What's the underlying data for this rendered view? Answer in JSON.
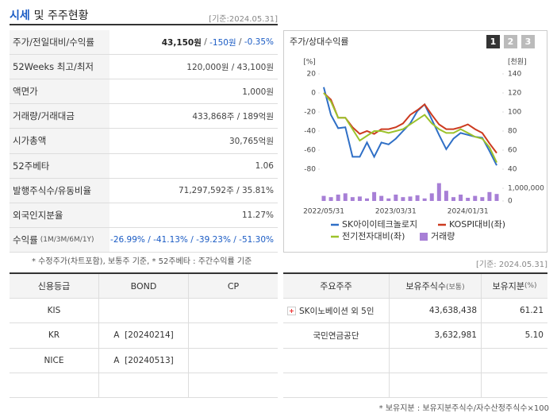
{
  "header": {
    "title": "시세",
    "title_rest": "및 주주현황",
    "date": "[기준:2024.05.31]"
  },
  "quote_table": {
    "rows": [
      {
        "label": "주가/전일대비/수익률",
        "value": [
          "43,150원",
          " / ",
          "-150원",
          " / ",
          "-0.35%"
        ],
        "colors": [
          "#222222",
          "#555555",
          "#1a5bc4",
          "#555555",
          "#1a5bc4"
        ]
      },
      {
        "label": "52Weeks 최고/최저",
        "value": [
          "120,000원 / 43,100원"
        ]
      },
      {
        "label": "액면가",
        "value": [
          "1,000원"
        ]
      },
      {
        "label": "거래량/거래대금",
        "value": [
          "433,868주 / 189억원"
        ]
      },
      {
        "label": "시가총액",
        "value": [
          "30,765억원"
        ]
      },
      {
        "label": "52주베타",
        "value": [
          "1.06"
        ]
      },
      {
        "label": "발행주식수/유동비율",
        "value": [
          "71,297,592주 / 35.81%"
        ]
      },
      {
        "label": "외국인지분율",
        "value": [
          "11.27%"
        ]
      },
      {
        "label": "수익률",
        "label_note": "(1M/3M/6M/1Y)",
        "value": [
          "-26.99% / -41.13% / -39.23% / -51.30%"
        ],
        "colors": [
          "#1a5bc4"
        ]
      }
    ],
    "note": "* 수정주가(차트포함), 보통주 기준, * 52주베타 : 주간수익률 기준"
  },
  "chart_data": {
    "type": "line",
    "title": "주가/상대수익률",
    "buttons": [
      "1",
      "2",
      "3"
    ],
    "categories": [
      "2022/05/31",
      null,
      null,
      null,
      null,
      null,
      null,
      null,
      null,
      null,
      "2023/03/31",
      null,
      null,
      null,
      null,
      null,
      null,
      null,
      null,
      null,
      "2024/01/31",
      null,
      null,
      null,
      null
    ],
    "y_label": "[%]",
    "y2_label": "[천원]",
    "ylim": [
      -80,
      20
    ],
    "yticks": [
      20,
      0,
      -20,
      -40,
      -60,
      -80
    ],
    "y2lim": [
      40,
      140
    ],
    "y2ticks": [
      140,
      120,
      100,
      80,
      60,
      40
    ],
    "volume_lim": [
      0,
      1000000
    ],
    "volume_ticks": [
      {
        "value": 1000000,
        "label": "1,000,000"
      },
      0
    ],
    "series": [
      {
        "name": "SK아이이테크놀로지",
        "color": "#2f6fc6",
        "axis": "y2",
        "values": [
          126,
          97,
          83,
          84,
          53,
          53,
          68,
          53,
          68,
          66,
          72,
          80,
          88,
          101,
          108,
          92,
          76,
          61,
          72,
          78,
          76,
          74,
          73,
          59,
          44
        ]
      },
      {
        "name": "KOSPI대비(좌)",
        "color": "#cc3a1f",
        "values": [
          0,
          -7,
          -26,
          -26,
          -36,
          -43,
          -40,
          -43,
          -38,
          -38,
          -36,
          -32,
          -23,
          -18,
          -12,
          -23,
          -33,
          -38,
          -38,
          -36,
          -33,
          -38,
          -42,
          -53,
          -63
        ]
      },
      {
        "name": "전기전자대비(좌)",
        "color": "#9cc22b",
        "values": [
          0,
          -9,
          -26,
          -26,
          -38,
          -50,
          -45,
          -40,
          -40,
          -42,
          -40,
          -38,
          -33,
          -28,
          -23,
          -32,
          -38,
          -42,
          -42,
          -38,
          -42,
          -46,
          -48,
          -57,
          -73
        ]
      },
      {
        "name": "거래량",
        "color": "#a77fd6",
        "type": "bar",
        "axis": "volume",
        "values": [
          400000,
          300000,
          500000,
          600000,
          300000,
          350000,
          200000,
          700000,
          400000,
          200000,
          500000,
          300000,
          350000,
          450000,
          200000,
          600000,
          1400000,
          800000,
          300000,
          500000,
          250000,
          400000,
          300000,
          700000,
          550000
        ]
      }
    ]
  },
  "rating_table": {
    "headers": [
      "신용등급",
      "BOND",
      "CP"
    ],
    "rows": [
      [
        "KIS"
      ],
      [
        "KR",
        "A  [20240214]"
      ],
      [
        "NICE",
        "A  [20240513]"
      ]
    ]
  },
  "holders_table": {
    "date": "[기준: 2024.05.31]",
    "headers": [
      {
        "text": "주요주주"
      },
      {
        "text": "보유주식수",
        "note": "(보통)"
      },
      {
        "text": "보유지분",
        "note": "(%)"
      }
    ],
    "rows": [
      [
        "SK이노베이션 외 5인",
        "43,638,438",
        "61.21"
      ],
      [
        "국민연금공단",
        "3,632,981",
        "5.10"
      ]
    ],
    "note": "* 보유지분 : 보유지분주식수/자수산정주식수×100"
  }
}
